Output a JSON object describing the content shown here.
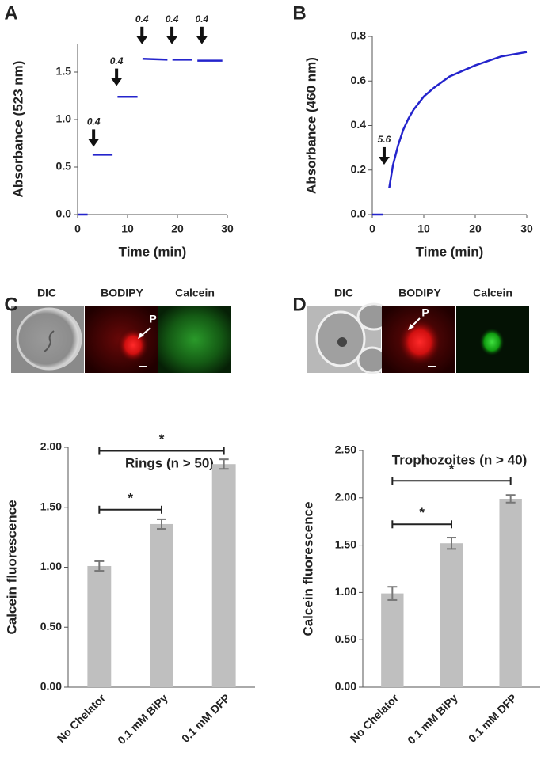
{
  "chart_data": [
    {
      "type": "line",
      "panel": "A",
      "x_label": "Time (min)",
      "y_label": "Absorbance (523 nm)",
      "x": [
        0,
        2,
        2.5,
        3,
        7,
        7.5,
        8,
        12,
        12.5,
        13,
        18,
        18.5,
        19,
        23,
        23.5,
        24,
        29
      ],
      "series": [
        {
          "color": "#2424cc",
          "values": [
            0,
            0,
            null,
            0.63,
            0.63,
            null,
            1.24,
            1.24,
            null,
            1.64,
            1.63,
            null,
            1.63,
            1.63,
            null,
            1.62,
            1.62
          ]
        }
      ],
      "xlim": [
        0,
        30
      ],
      "xticks": [
        0,
        10,
        20,
        30
      ],
      "ylim": [
        0,
        1.8
      ],
      "yticks": [
        {
          "value": 0,
          "label": "0.0"
        },
        {
          "value": 0.5,
          "label": "0.5"
        },
        {
          "value": 1,
          "label": "1.0"
        },
        {
          "value": 1.5,
          "label": "1.5"
        }
      ],
      "annotations": [
        {
          "text": "0.4",
          "x": 3.2,
          "y": 0.68
        },
        {
          "text": "0.4",
          "x": 7.8,
          "y": 1.32
        },
        {
          "text": "0.4",
          "x": 12.9,
          "y": 1.76
        },
        {
          "text": "0.4",
          "x": 18.9,
          "y": 1.76
        },
        {
          "text": "0.4",
          "x": 24.9,
          "y": 1.76
        }
      ]
    },
    {
      "type": "line",
      "panel": "B",
      "x_label": "Time (min)",
      "y_label": "Absorbance (460 nm)",
      "x": [
        0,
        2,
        2.6,
        3.3,
        4,
        5,
        6,
        7,
        8,
        10,
        12,
        15,
        20,
        25,
        30
      ],
      "series": [
        {
          "color": "#2424cc",
          "values": [
            0,
            0,
            null,
            0.12,
            0.22,
            0.31,
            0.38,
            0.43,
            0.47,
            0.53,
            0.57,
            0.62,
            0.67,
            0.71,
            0.73
          ]
        }
      ],
      "xlim": [
        0,
        30
      ],
      "xticks": [
        0,
        10,
        20,
        30
      ],
      "ylim": [
        0,
        0.8
      ],
      "yticks": [
        {
          "value": 0,
          "label": "0.0"
        },
        {
          "value": 0.2,
          "label": "0.2"
        },
        {
          "value": 0.4,
          "label": "0.4"
        },
        {
          "value": 0.6,
          "label": "0.6"
        },
        {
          "value": 0.8,
          "label": "0.8"
        }
      ],
      "annotations": [
        {
          "text": "5.6",
          "x": 2.3,
          "y": 0.21
        }
      ]
    },
    {
      "type": "bar",
      "panel": "C",
      "title": "Rings (n > 50)",
      "y_label": "Calcein fluorescence",
      "categories": [
        "No Chelator",
        "0.1 mM BiPy",
        "0.1 mM DFP"
      ],
      "series": [
        {
          "color": "#bfbfbf",
          "values": [
            1.01,
            1.36,
            1.86
          ],
          "errors": [
            0.04,
            0.04,
            0.04
          ]
        }
      ],
      "ylim": [
        0,
        2
      ],
      "yticks": [
        {
          "value": 0,
          "label": "0.00"
        },
        {
          "value": 0.5,
          "label": "0.50"
        },
        {
          "value": 1,
          "label": "1.00"
        },
        {
          "value": 1.5,
          "label": "1.50"
        },
        {
          "value": 2,
          "label": "2.00"
        }
      ],
      "significance": [
        {
          "from": 0,
          "to": 1,
          "y": 1.48,
          "label": "*"
        },
        {
          "from": 0,
          "to": 2,
          "y": 1.97,
          "label": "*"
        }
      ]
    },
    {
      "type": "bar",
      "panel": "D",
      "title": "Trophozoites  (n > 40)",
      "y_label": "Calcein  fluorescence",
      "categories": [
        "No Chelator",
        "0.1 mM BiPy",
        "0.1 mM DFP"
      ],
      "series": [
        {
          "color": "#bfbfbf",
          "values": [
            0.99,
            1.52,
            1.99
          ],
          "errors": [
            0.07,
            0.06,
            0.04
          ]
        }
      ],
      "ylim": [
        0,
        2.5
      ],
      "yticks": [
        {
          "value": 0,
          "label": "0.00"
        },
        {
          "value": 0.5,
          "label": "0.50"
        },
        {
          "value": 1,
          "label": "1.00"
        },
        {
          "value": 1.5,
          "label": "1.50"
        },
        {
          "value": 2,
          "label": "2.00"
        },
        {
          "value": 2.5,
          "label": "2.50"
        }
      ],
      "significance": [
        {
          "from": 0,
          "to": 1,
          "y": 1.72,
          "label": "*"
        },
        {
          "from": 0,
          "to": 2,
          "y": 2.18,
          "label": "*"
        }
      ]
    }
  ],
  "micrographs": [
    {
      "labels": [
        "DIC",
        "BODIPY",
        "Calcein"
      ],
      "pointer": "P"
    },
    {
      "labels": [
        "DIC",
        "BODIPY",
        "Calcein"
      ],
      "pointer": "P"
    }
  ]
}
